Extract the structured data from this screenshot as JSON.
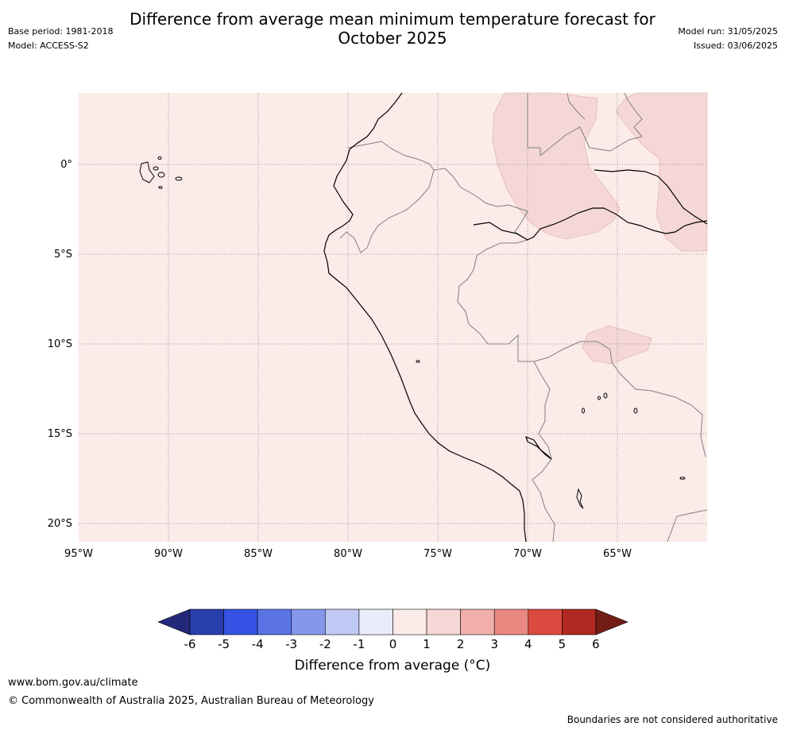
{
  "header": {
    "title_line1": "Difference from average mean minimum temperature forecast for",
    "title_line2": "October 2025",
    "base_period": "Base period: 1981-2018",
    "model": "Model: ACCESS-S2",
    "model_run": "Model run: 31/05/2025",
    "issued": "Issued: 03/06/2025"
  },
  "map": {
    "latitude_labels": [
      "0°",
      "5°S",
      "10°S",
      "15°S",
      "20°S"
    ],
    "longitude_labels": [
      "95°W",
      "90°W",
      "85°W",
      "80°W",
      "75°W",
      "70°W",
      "65°W"
    ],
    "background_anomaly_class": "0 to 1",
    "highlighted_anomaly_class": "1 to 2",
    "colors": {
      "class_0_1": "#fbebe9",
      "class_1_2": "#f5d8d5",
      "coastline": "#000000",
      "borders": "#808080",
      "gridlines": "#808080"
    }
  },
  "colorbar": {
    "label": "Difference from average (°C)",
    "ticks": [
      "-6",
      "-5",
      "-4",
      "-3",
      "-2",
      "-1",
      "0",
      "1",
      "2",
      "3",
      "4",
      "5",
      "6"
    ],
    "colors": [
      "#22287a",
      "#283ead",
      "#3452e3",
      "#5a74e6",
      "#8497eb",
      "#c0c8f4",
      "#e9ecfb",
      "#fbebe9",
      "#f5d8d5",
      "#f0afab",
      "#e88880",
      "#db4a3e",
      "#b0281f",
      "#721e16"
    ]
  },
  "footer": {
    "website": "www.bom.gov.au/climate",
    "copyright": "© Commonwealth of Australia 2025, Australian Bureau of Meteorology",
    "disclaimer": "Boundaries are not considered authoritative"
  }
}
